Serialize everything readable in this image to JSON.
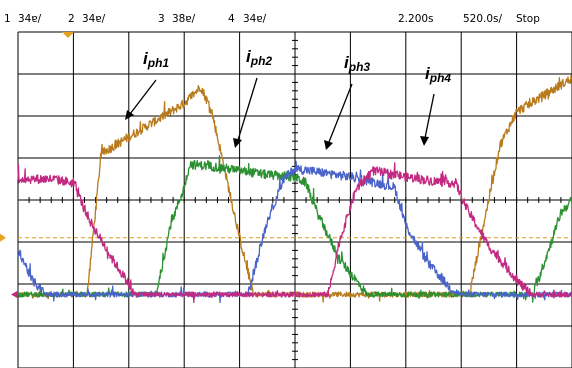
{
  "header": {
    "channels": [
      {
        "num": "1",
        "scale": "34ɐ/",
        "color": "#E8A020"
      },
      {
        "num": "2",
        "scale": "34ɐ/",
        "color": "#2E9E2E"
      },
      {
        "num": "3",
        "scale": "38ɐ/",
        "color": "#5577CC"
      },
      {
        "num": "4",
        "scale": "34ɐ/",
        "color": "#D0308A"
      }
    ],
    "trigger_pos": "2.200s",
    "timebase": "520.0s/",
    "run_state": "Stop"
  },
  "annotations": [
    {
      "main": "i",
      "sub": "ph1"
    },
    {
      "main": "i",
      "sub": "ph2"
    },
    {
      "main": "i",
      "sub": "ph3"
    },
    {
      "main": "i",
      "sub": "ph4"
    }
  ],
  "chart_data": {
    "type": "line",
    "grid": true,
    "x_divisions": 10,
    "y_divisions": 8,
    "xlim": [
      0,
      10
    ],
    "ylim": [
      -4,
      4
    ],
    "series": [
      {
        "name": "ph1",
        "color": "#B87A1C",
        "x": [
          0,
          0.3,
          0.55,
          0.75,
          1.0,
          1.25,
          1.5,
          2.0,
          2.5,
          3.0,
          3.3,
          3.5,
          3.75,
          4.0,
          4.25,
          4.5,
          4.75,
          5.0,
          7.5,
          8.0,
          8.15,
          8.4,
          8.7,
          9.0,
          9.5,
          10.0
        ],
        "y": [
          -2.25,
          -2.25,
          -2.25,
          -2.25,
          -2.25,
          -2.25,
          1.1,
          1.5,
          1.9,
          2.3,
          2.7,
          2.1,
          0.6,
          -0.9,
          -2.25,
          -2.25,
          -2.25,
          -2.25,
          -2.25,
          -2.25,
          -2.25,
          -0.6,
          1.3,
          2.1,
          2.5,
          2.9
        ]
      },
      {
        "name": "ph2",
        "color": "#2A9030",
        "x": [
          0,
          0.5,
          1.0,
          1.5,
          2.0,
          2.25,
          2.5,
          2.75,
          3.0,
          3.1,
          3.5,
          4.0,
          4.5,
          5.0,
          5.2,
          5.4,
          5.8,
          6.3,
          6.8,
          7.5,
          8.0,
          9.0,
          9.3,
          9.55,
          9.8,
          10.0
        ],
        "y": [
          -2.25,
          -2.25,
          -2.25,
          -2.25,
          -2.25,
          -2.25,
          -2.25,
          -0.6,
          0.3,
          0.85,
          0.8,
          0.7,
          0.6,
          0.55,
          0.4,
          -0.3,
          -1.4,
          -2.25,
          -2.25,
          -2.25,
          -2.25,
          -2.25,
          -2.25,
          -1.3,
          -0.3,
          0.0
        ]
      },
      {
        "name": "ph3",
        "color": "#4A63C8",
        "x": [
          0,
          0.05,
          0.25,
          0.5,
          1.0,
          2.0,
          3.0,
          4.0,
          4.15,
          4.5,
          4.8,
          5.0,
          5.5,
          6.0,
          6.5,
          6.8,
          7.0,
          7.4,
          7.8,
          8.0,
          8.5,
          9.0,
          9.5,
          10.0
        ],
        "y": [
          -1.3,
          -1.3,
          -1.9,
          -2.25,
          -2.25,
          -2.25,
          -2.25,
          -2.25,
          -2.25,
          -0.5,
          0.5,
          0.75,
          0.65,
          0.55,
          0.4,
          0.3,
          -0.6,
          -1.5,
          -2.1,
          -2.25,
          -2.25,
          -2.25,
          -2.25,
          -2.25
        ]
      },
      {
        "name": "ph4",
        "color": "#C22A82",
        "x": [
          0,
          0.3,
          0.6,
          0.85,
          1.0,
          1.3,
          1.7,
          2.0,
          2.1,
          2.5,
          3.0,
          5.0,
          5.6,
          5.8,
          6.1,
          6.4,
          7.0,
          7.5,
          7.9,
          8.1,
          8.5,
          9.0,
          9.25,
          9.5,
          10.0
        ],
        "y": [
          0.5,
          0.5,
          0.5,
          0.45,
          0.4,
          -0.5,
          -1.4,
          -2.0,
          -2.25,
          -2.25,
          -2.25,
          -2.25,
          -2.25,
          -1.0,
          0.25,
          0.7,
          0.55,
          0.45,
          0.4,
          -0.2,
          -1.1,
          -1.9,
          -2.25,
          -2.25,
          -2.25
        ]
      }
    ],
    "markers": {
      "trigger_level": -0.9,
      "ground": -2.25
    }
  }
}
